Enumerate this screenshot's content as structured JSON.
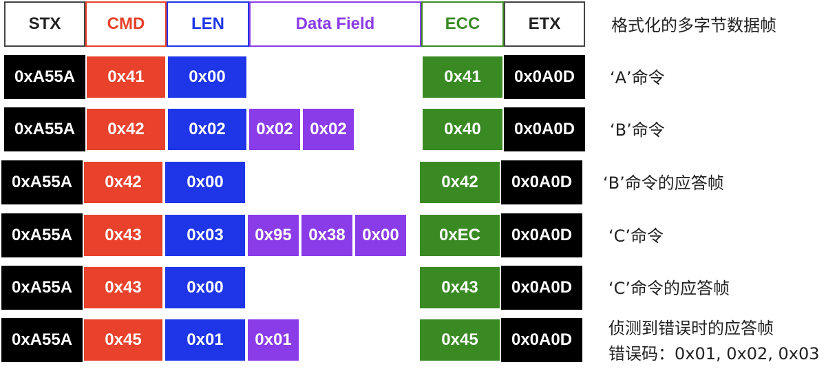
{
  "header": {
    "stx": "STX",
    "cmd": "CMD",
    "len": "LEN",
    "data": "Data Field",
    "ecc": "ECC",
    "etx": "ETX",
    "label": "格式化的多字节数据帧"
  },
  "rows": [
    {
      "stx": "0xA55A",
      "cmd": "0x41",
      "len": "0x00",
      "data": [],
      "ecc": "0x41",
      "etx": "0x0A0D",
      "label": "‘A’命令"
    },
    {
      "stx": "0xA55A",
      "cmd": "0x42",
      "len": "0x02",
      "data": [
        "0x02",
        "0x02"
      ],
      "ecc": "0x40",
      "etx": "0x0A0D",
      "label": "‘B’命令"
    },
    {
      "stx": "0xA55A",
      "cmd": "0x42",
      "len": "0x00",
      "data": [],
      "ecc": "0x42",
      "etx": "0x0A0D",
      "label": "‘B’命令的应答帧"
    },
    {
      "stx": "0xA55A",
      "cmd": "0x43",
      "len": "0x03",
      "data": [
        "0x95",
        "0x38",
        "0x00"
      ],
      "ecc": "0xEC",
      "etx": "0x0A0D",
      "label": "‘C’命令"
    },
    {
      "stx": "0xA55A",
      "cmd": "0x43",
      "len": "0x00",
      "data": [],
      "ecc": "0x43",
      "etx": "0x0A0D",
      "label": "‘C’命令的应答帧"
    },
    {
      "stx": "0xA55A",
      "cmd": "0x45",
      "len": "0x01",
      "data": [
        "0x01"
      ],
      "ecc": "0x45",
      "etx": "0x0A0D",
      "label": "侦测到错误时的应答帧",
      "label2": "错误码：0x01, 0x02, 0x03"
    }
  ],
  "colors": {
    "stx": "#000000",
    "cmd": "#e8412c",
    "len": "#1f36e8",
    "data": "#8a3ce8",
    "ecc": "#3a8a24",
    "etx": "#000000"
  }
}
